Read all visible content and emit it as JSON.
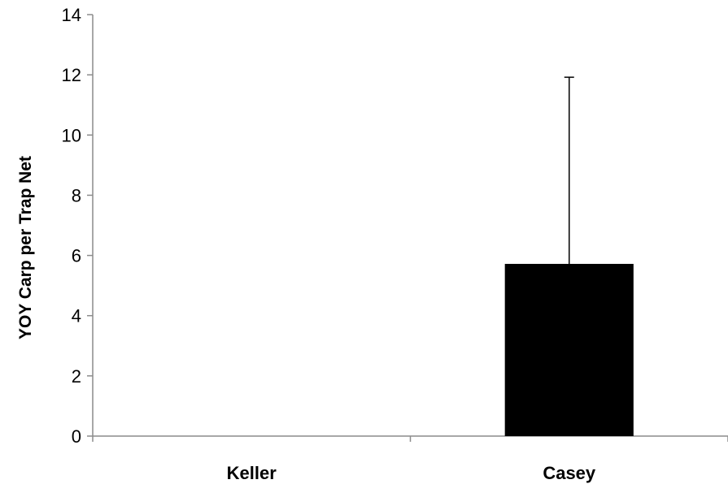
{
  "chart_data": {
    "type": "bar",
    "title": "",
    "xlabel": "",
    "ylabel": "YOY Carp per Trap Net",
    "categories": [
      "Keller",
      "Casey"
    ],
    "values": [
      0,
      5.72
    ],
    "error_upper": [
      0,
      6.2
    ],
    "ylim": [
      0,
      14
    ],
    "yticks": [
      0,
      2,
      4,
      6,
      8,
      10,
      12,
      14
    ],
    "ytick_labels": [
      "0",
      "2",
      "4",
      "6",
      "8",
      "10",
      "12",
      "14"
    ],
    "grid": false,
    "legend": "none",
    "bar_color": "#000000"
  }
}
